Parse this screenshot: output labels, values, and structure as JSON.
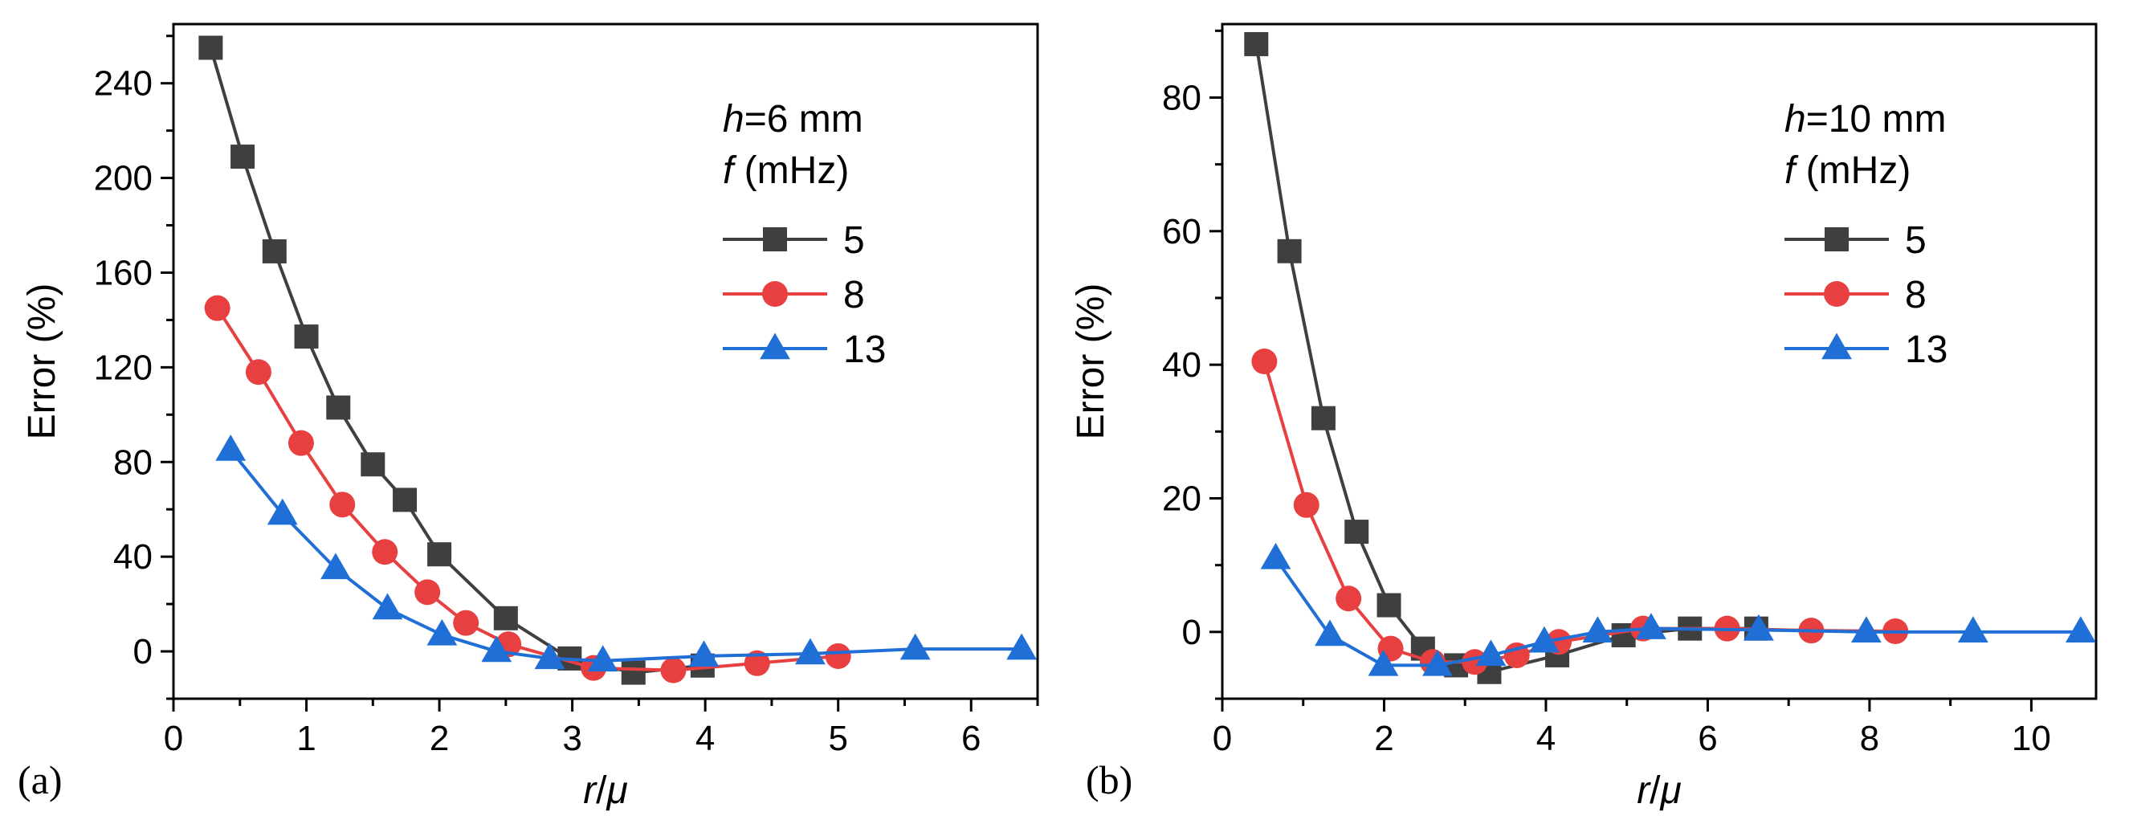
{
  "chart_data": [
    {
      "type": "line",
      "panel_label": "(a)",
      "legend_title_var": "h",
      "legend_title_rest": "=6 mm",
      "legend_subtitle_var": "f",
      "legend_subtitle_rest": " (mHz)",
      "xlabel_var1": "r",
      "xlabel_sep": "/",
      "xlabel_var2": "μ",
      "ylabel": "Error (%)",
      "xlim": [
        0,
        6.5
      ],
      "ylim": [
        -20,
        265
      ],
      "xticks": [
        0,
        1,
        2,
        3,
        4,
        5,
        6
      ],
      "yticks": [
        0,
        40,
        80,
        120,
        160,
        200,
        240
      ],
      "legend_position": "top-right",
      "series": [
        {
          "name": "5",
          "color": "#3f3f3f",
          "marker": "square",
          "x": [
            0.28,
            0.52,
            0.76,
            1.0,
            1.24,
            1.5,
            1.74,
            2.0,
            2.5,
            2.98,
            3.46,
            3.98
          ],
          "y": [
            255,
            209,
            169,
            133,
            103,
            79,
            64,
            41,
            14,
            -3,
            -9,
            -6
          ]
        },
        {
          "name": "8",
          "color": "#e84040",
          "marker": "circle",
          "x": [
            0.33,
            0.64,
            0.96,
            1.27,
            1.59,
            1.91,
            2.2,
            2.52,
            3.16,
            3.76,
            4.39,
            5.0
          ],
          "y": [
            145,
            118,
            88,
            62,
            42,
            25,
            12,
            3,
            -7,
            -8,
            -5,
            -2
          ]
        },
        {
          "name": "13",
          "color": "#1f6fd6",
          "marker": "triangle",
          "x": [
            0.43,
            0.82,
            1.22,
            1.61,
            2.02,
            2.43,
            2.83,
            3.23,
            3.99,
            4.79,
            5.58,
            6.38
          ],
          "y": [
            85,
            58,
            35,
            18,
            7,
            0,
            -3,
            -4,
            -2,
            -1,
            1,
            1
          ]
        }
      ]
    },
    {
      "type": "line",
      "panel_label": "(b)",
      "legend_title_var": "h",
      "legend_title_rest": "=10 mm",
      "legend_subtitle_var": "f",
      "legend_subtitle_rest": " (mHz)",
      "xlabel_var1": "r",
      "xlabel_sep": "/",
      "xlabel_var2": "μ",
      "ylabel": "Error (%)",
      "xlim": [
        0,
        10.8
      ],
      "ylim": [
        -10,
        91
      ],
      "xticks": [
        0,
        2,
        4,
        6,
        8,
        10
      ],
      "yticks": [
        0,
        20,
        40,
        60,
        80
      ],
      "legend_position": "top-right",
      "series": [
        {
          "name": "5",
          "color": "#3f3f3f",
          "marker": "square",
          "x": [
            0.42,
            0.83,
            1.25,
            1.66,
            2.06,
            2.48,
            2.89,
            3.3,
            4.14,
            4.96,
            5.78,
            6.6
          ],
          "y": [
            88,
            57,
            32,
            15,
            4,
            -2.5,
            -5,
            -6,
            -3.5,
            -0.5,
            0.5,
            0.5
          ]
        },
        {
          "name": "8",
          "color": "#e84040",
          "marker": "circle",
          "x": [
            0.52,
            1.04,
            1.56,
            2.08,
            2.6,
            3.12,
            3.64,
            4.16,
            5.2,
            6.24,
            7.28,
            8.32
          ],
          "y": [
            40.5,
            19,
            5,
            -2.5,
            -4.5,
            -4.5,
            -3.5,
            -1.5,
            0.5,
            0.5,
            0.2,
            0.1
          ]
        },
        {
          "name": "13",
          "color": "#1f6fd6",
          "marker": "triangle",
          "x": [
            0.66,
            1.33,
            1.99,
            2.66,
            3.32,
            3.98,
            4.64,
            5.3,
            6.63,
            7.96,
            9.28,
            10.61
          ],
          "y": [
            11,
            -0.5,
            -5,
            -5,
            -3.5,
            -1.5,
            0,
            0.5,
            0.3,
            0,
            0,
            0
          ]
        }
      ]
    }
  ]
}
